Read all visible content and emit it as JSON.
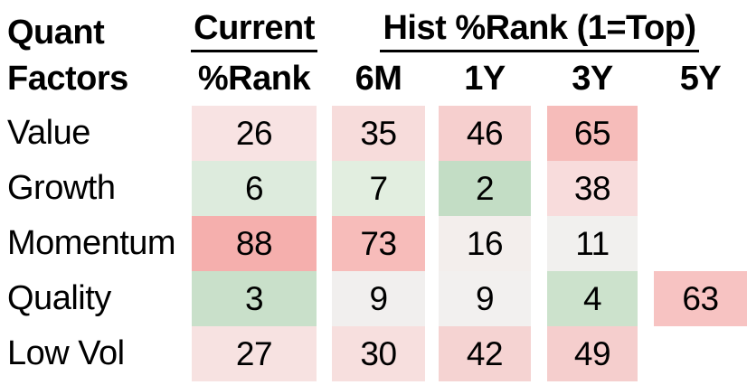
{
  "table": {
    "title_line1": "Quant",
    "title_line2": "Factors",
    "group_headers": {
      "current": "Current",
      "hist": "Hist %Rank (1=Top)"
    },
    "col_headers": {
      "current_sub": "%Rank",
      "h6m": "6M",
      "h1y": "1Y",
      "h3y": "3Y",
      "h5y": "5Y"
    },
    "rows": [
      {
        "label": "Value",
        "cells": [
          {
            "v": "26",
            "bg": "#f8e3e3"
          },
          {
            "v": "35",
            "bg": "#f7dcdb"
          },
          {
            "v": "46",
            "bg": "#f6cfce"
          },
          {
            "v": "65",
            "bg": "#f6bcba"
          },
          {
            "v": "",
            "bg": ""
          }
        ]
      },
      {
        "label": "Growth",
        "cells": [
          {
            "v": "6",
            "bg": "#ddebdd"
          },
          {
            "v": "7",
            "bg": "#e2eee0"
          },
          {
            "v": "2",
            "bg": "#c3ddc5"
          },
          {
            "v": "38",
            "bg": "#f8dcdc"
          },
          {
            "v": "",
            "bg": ""
          }
        ]
      },
      {
        "label": "Momentum",
        "cells": [
          {
            "v": "88",
            "bg": "#f5afad"
          },
          {
            "v": "73",
            "bg": "#f7bcba"
          },
          {
            "v": "16",
            "bg": "#f3eeec"
          },
          {
            "v": "11",
            "bg": "#f1f0ee"
          },
          {
            "v": "",
            "bg": ""
          }
        ]
      },
      {
        "label": "Quality",
        "cells": [
          {
            "v": "3",
            "bg": "#c9e0ca"
          },
          {
            "v": "9",
            "bg": "#f1efee"
          },
          {
            "v": "9",
            "bg": "#f2f0ef"
          },
          {
            "v": "4",
            "bg": "#cce2cc"
          },
          {
            "v": "63",
            "bg": "#f7c3c2"
          }
        ]
      },
      {
        "label": "Low Vol",
        "cells": [
          {
            "v": "27",
            "bg": "#f7e2e1"
          },
          {
            "v": "30",
            "bg": "#f7dfde"
          },
          {
            "v": "42",
            "bg": "#f5d3d2"
          },
          {
            "v": "49",
            "bg": "#f5cecd"
          },
          {
            "v": "",
            "bg": ""
          }
        ]
      }
    ]
  },
  "chart_data": {
    "type": "heatmap",
    "title": "Quant Factors — Current %Rank and Hist %Rank (1=Top)",
    "row_labels": [
      "Value",
      "Growth",
      "Momentum",
      "Quality",
      "Low Vol"
    ],
    "column_labels": [
      "Current %Rank",
      "6M",
      "1Y",
      "3Y",
      "5Y"
    ],
    "values": [
      [
        26,
        35,
        46,
        65,
        null
      ],
      [
        6,
        7,
        2,
        38,
        null
      ],
      [
        88,
        73,
        16,
        11,
        null
      ],
      [
        3,
        9,
        9,
        4,
        63
      ],
      [
        27,
        30,
        42,
        49,
        null
      ]
    ],
    "color_scale": {
      "low": "#c3ddc5",
      "mid": "#f1f0ee",
      "high": "#f5afad",
      "meaning": "green = rank near 1 (top), red = high percentile rank"
    },
    "legend_position": "none",
    "grid": false
  }
}
